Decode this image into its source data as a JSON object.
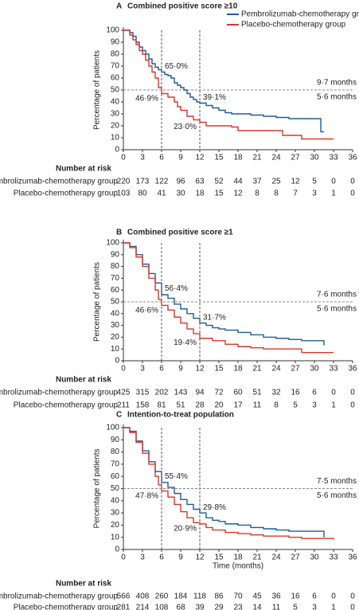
{
  "chart_data": [
    {
      "type": "km",
      "panel": "A",
      "title": "Combined positive score ≥10",
      "ylabel": "Percentage of patients",
      "legend": true,
      "xlim": [
        0,
        36
      ],
      "xticks": [
        0,
        3,
        6,
        9,
        12,
        15,
        18,
        21,
        24,
        27,
        30,
        33,
        36
      ],
      "ylim": [
        0,
        100
      ],
      "yticks": [
        0,
        10,
        20,
        30,
        40,
        50,
        60,
        70,
        80,
        90,
        100
      ],
      "reference_lines": {
        "x": [
          6,
          12
        ],
        "y": [
          50
        ]
      },
      "risk_title": "Number at risk",
      "series": [
        {
          "name": "Pembrolizumab-chemotherapy group",
          "color": "#1f5c99",
          "x": [
            0,
            1,
            1.5,
            2,
            2.5,
            3,
            3.5,
            4,
            4.5,
            5,
            5.5,
            6,
            6.5,
            7,
            7.5,
            8,
            8.5,
            9,
            9.5,
            10,
            10.5,
            11,
            11.5,
            12,
            13,
            14,
            15,
            16,
            17,
            20,
            22,
            24,
            26,
            31,
            31.5
          ],
          "values": [
            100,
            98,
            95,
            90,
            86,
            83,
            80,
            76,
            72,
            69,
            67,
            65,
            63,
            62,
            60,
            56,
            54,
            52,
            50,
            47,
            44,
            42,
            40,
            39,
            37,
            35,
            33,
            31,
            30,
            29,
            28,
            27,
            26,
            15,
            15
          ],
          "at_risk": [
            220,
            173,
            122,
            96,
            63,
            52,
            44,
            37,
            25,
            12,
            5,
            0,
            0
          ]
        },
        {
          "name": "Placebo-chemotherapy group",
          "color": "#d9382e",
          "x": [
            0,
            1,
            1.5,
            2,
            2.5,
            3,
            3.5,
            4,
            4.5,
            5,
            5.5,
            6,
            7,
            8,
            8.5,
            9,
            10,
            11,
            12,
            13,
            17,
            18,
            25,
            28,
            33
          ],
          "values": [
            100,
            96,
            92,
            88,
            83,
            80,
            75,
            70,
            65,
            60,
            52,
            47,
            44,
            40,
            36,
            33,
            28,
            25,
            23,
            20,
            19,
            16,
            12,
            9,
            9
          ],
          "at_risk": [
            103,
            80,
            41,
            30,
            18,
            15,
            12,
            8,
            8,
            7,
            3,
            1,
            0
          ]
        }
      ],
      "annotations": [
        {
          "label": "65·0%",
          "x": 6,
          "y": 65.0,
          "series": 0
        },
        {
          "label": "46·9%",
          "x": 6,
          "y": 46.9,
          "series": 1
        },
        {
          "label": "39·1%",
          "x": 12,
          "y": 39.1,
          "series": 0
        },
        {
          "label": "23·0%",
          "x": 12,
          "y": 23.0,
          "series": 1
        }
      ],
      "median_labels": [
        "9·7 months",
        "5·6 months"
      ]
    },
    {
      "type": "km",
      "panel": "B",
      "title": "Combined positive score ≥1",
      "ylabel": "Percentage of patients",
      "legend": false,
      "xlim": [
        0,
        36
      ],
      "xticks": [
        0,
        3,
        6,
        9,
        12,
        15,
        18,
        21,
        24,
        27,
        30,
        33,
        36
      ],
      "ylim": [
        0,
        100
      ],
      "yticks": [
        0,
        10,
        20,
        30,
        40,
        50,
        60,
        70,
        80,
        90,
        100
      ],
      "reference_lines": {
        "x": [
          6,
          12
        ],
        "y": [
          50
        ]
      },
      "risk_title": "Number at risk",
      "series": [
        {
          "name": "Pembrolizumab-chemotherapy group",
          "color": "#1f5c99",
          "x": [
            0,
            1,
            2,
            3,
            4,
            5,
            6,
            7,
            8,
            9,
            10,
            11,
            12,
            13,
            14,
            15,
            16,
            18,
            20,
            22,
            24,
            26,
            28,
            31,
            31.5
          ],
          "values": [
            100,
            97,
            90,
            82,
            74,
            66,
            56,
            53,
            48,
            44,
            40,
            36,
            32,
            30,
            28,
            27,
            26,
            24,
            22,
            20,
            19,
            18,
            17,
            17,
            13
          ],
          "at_risk": [
            425,
            315,
            202,
            143,
            94,
            72,
            60,
            51,
            32,
            16,
            6,
            0,
            0
          ]
        },
        {
          "name": "Placebo-chemotherapy group",
          "color": "#d9382e",
          "x": [
            0,
            1,
            2,
            3,
            4,
            5,
            5.5,
            6,
            7,
            8,
            9,
            10,
            11,
            12,
            14,
            16,
            18,
            20,
            22,
            28,
            33
          ],
          "values": [
            100,
            96,
            88,
            80,
            70,
            60,
            52,
            47,
            43,
            37,
            32,
            27,
            23,
            19,
            17,
            14,
            12,
            11,
            10,
            7,
            7
          ],
          "at_risk": [
            211,
            158,
            81,
            51,
            28,
            20,
            17,
            11,
            8,
            5,
            3,
            1,
            0
          ]
        }
      ],
      "annotations": [
        {
          "label": "56·4%",
          "x": 6,
          "y": 56.4,
          "series": 0
        },
        {
          "label": "46·6%",
          "x": 6,
          "y": 46.6,
          "series": 1
        },
        {
          "label": "31·7%",
          "x": 12,
          "y": 31.7,
          "series": 0
        },
        {
          "label": "19·4%",
          "x": 12,
          "y": 19.4,
          "series": 1
        }
      ],
      "median_labels": [
        "7·6 months",
        "5·6 months"
      ]
    },
    {
      "type": "km",
      "panel": "C",
      "title": "Intention-to-treat population",
      "ylabel": "Percentage of patients",
      "xlabel": "Time (months)",
      "legend": false,
      "xlim": [
        0,
        36
      ],
      "xticks": [
        0,
        3,
        6,
        9,
        12,
        15,
        18,
        21,
        24,
        27,
        30,
        33,
        36
      ],
      "ylim": [
        0,
        100
      ],
      "yticks": [
        0,
        10,
        20,
        30,
        40,
        50,
        60,
        70,
        80,
        90,
        100
      ],
      "reference_lines": {
        "x": [
          6,
          12
        ],
        "y": [
          50
        ]
      },
      "risk_title": "Number at risk",
      "series": [
        {
          "name": "Pembrolizumab-chemotherapy group",
          "color": "#1f5c99",
          "x": [
            0,
            1,
            2,
            3,
            4,
            5,
            6,
            7,
            8,
            9,
            10,
            11,
            12,
            13,
            14,
            15,
            16,
            18,
            20,
            22,
            24,
            26,
            31,
            31.5
          ],
          "values": [
            100,
            97,
            89,
            81,
            72,
            64,
            55,
            51,
            46,
            41,
            37,
            33,
            30,
            26,
            24,
            23,
            21,
            20,
            18,
            17,
            16,
            15,
            15,
            10
          ],
          "at_risk": [
            566,
            408,
            260,
            184,
            118,
            86,
            70,
            45,
            36,
            16,
            6,
            0,
            0
          ]
        },
        {
          "name": "Placebo-chemotherapy group",
          "color": "#d9382e",
          "x": [
            0,
            1,
            2,
            3,
            4,
            5,
            5.5,
            6,
            7,
            8,
            9,
            10,
            11,
            12,
            13,
            14,
            16,
            18,
            20,
            22,
            26,
            28,
            33
          ],
          "values": [
            100,
            96,
            88,
            79,
            70,
            60,
            53,
            48,
            43,
            37,
            31,
            26,
            22,
            21,
            18,
            16,
            14,
            13,
            12,
            11,
            10,
            9,
            8
          ],
          "at_risk": [
            281,
            214,
            108,
            68,
            39,
            29,
            23,
            14,
            11,
            5,
            3,
            1,
            0
          ]
        }
      ],
      "annotations": [
        {
          "label": "55·4%",
          "x": 6,
          "y": 55.4,
          "series": 0
        },
        {
          "label": "47·8%",
          "x": 6,
          "y": 47.8,
          "series": 1
        },
        {
          "label": "29·8%",
          "x": 12,
          "y": 29.8,
          "series": 0
        },
        {
          "label": "20·9%",
          "x": 12,
          "y": 20.9,
          "series": 1
        }
      ],
      "median_labels": [
        "7·5 months",
        "5·6 months"
      ]
    }
  ]
}
